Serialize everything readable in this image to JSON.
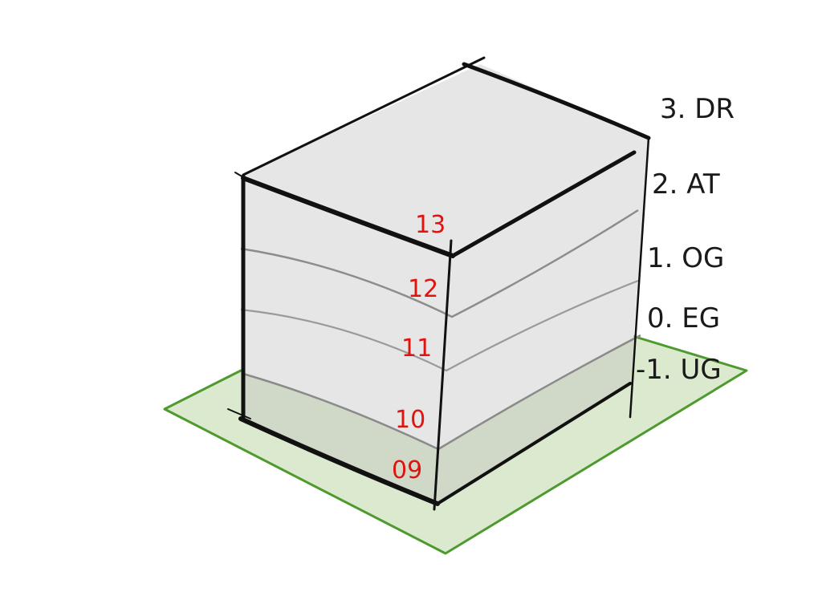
{
  "colors": {
    "ground_fill": "#dbeacf",
    "ground_stroke": "#4f9a2e",
    "wall_fill": "#e6e6e6",
    "wall_fill_below_ground": "#cbd6c1",
    "outline": "#111111",
    "floor_line": "#8c8c8c",
    "level_number": "#e0140f",
    "floor_label": "#1a1a1a"
  },
  "floor_labels": [
    "3. DR",
    "2. AT",
    "1. OG",
    "0. EG",
    "-1. UG"
  ],
  "level_numbers": [
    "13",
    "12",
    "11",
    "10",
    "09"
  ]
}
